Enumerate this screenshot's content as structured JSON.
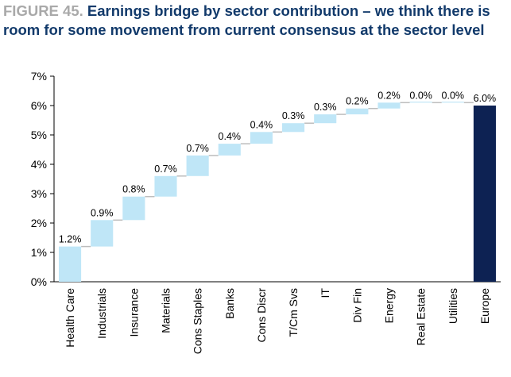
{
  "figure_label": "FIGURE 45.",
  "title": "Earnings bridge by sector contribution – we think there is room for some movement from current consensus at the sector level",
  "colors": {
    "bar": "#bfe6f7",
    "total_bar": "#0d2253",
    "connector": "#bdbdbd",
    "axis": "#000000"
  },
  "chart_data": {
    "type": "bar",
    "subtype": "waterfall",
    "categories": [
      "Health Care",
      "Industrials",
      "Insurance",
      "Materials",
      "Cons Staples",
      "Banks",
      "Cons Discr",
      "T/Cm Svs",
      "IT",
      "Div Fin",
      "Energy",
      "Real Estate",
      "Utilities",
      "Europe"
    ],
    "values": [
      1.2,
      0.9,
      0.8,
      0.7,
      0.7,
      0.4,
      0.4,
      0.3,
      0.3,
      0.2,
      0.2,
      0.0,
      0.0,
      6.0
    ],
    "value_labels": [
      "1.2%",
      "0.9%",
      "0.8%",
      "0.7%",
      "0.7%",
      "0.4%",
      "0.4%",
      "0.3%",
      "0.3%",
      "0.2%",
      "0.2%",
      "0.0%",
      "0.0%",
      "6.0%"
    ],
    "total_category": "Europe",
    "ylim": [
      0,
      7
    ],
    "yticks": [
      "0%",
      "1%",
      "2%",
      "3%",
      "4%",
      "5%",
      "6%",
      "7%"
    ],
    "xlabel": "",
    "ylabel": "",
    "grid": false,
    "legend": "none"
  }
}
